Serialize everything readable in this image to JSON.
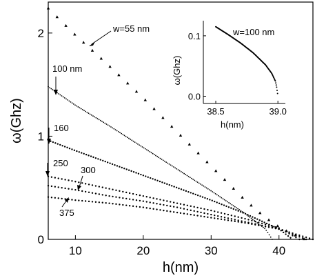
{
  "chart_data": [
    {
      "type": "scatter",
      "title": "",
      "xlabel": "h(nm)",
      "ylabel": "ω(Ghz)",
      "xlim": [
        6,
        45
      ],
      "ylim": [
        0,
        2.3
      ],
      "xticks": [
        10,
        20,
        30,
        40
      ],
      "yticks": [
        0,
        1,
        2
      ],
      "xtick_labels": [
        "10",
        "20",
        "30",
        "40"
      ],
      "ytick_labels": [
        "0",
        "1",
        "2"
      ],
      "grid": false,
      "legend": "none",
      "series": [
        {
          "name": "w=55 nm",
          "marker": "triangle",
          "x": [
            6,
            10,
            15,
            20,
            25,
            30,
            35,
            38,
            40,
            42,
            43.8
          ],
          "y": [
            2.24,
            1.98,
            1.68,
            1.37,
            1.04,
            0.71,
            0.38,
            0.21,
            0.12,
            0.05,
            0.0
          ]
        },
        {
          "name": "100 nm",
          "marker": "dot",
          "x": [
            6,
            10,
            15,
            20,
            25,
            30,
            35,
            38,
            39
          ],
          "y": [
            1.48,
            1.3,
            1.1,
            0.89,
            0.68,
            0.47,
            0.25,
            0.1,
            0.0
          ]
        },
        {
          "name": "160",
          "marker": "dot",
          "x": [
            6,
            10,
            15,
            20,
            25,
            30,
            35,
            40,
            42
          ],
          "y": [
            0.96,
            0.86,
            0.74,
            0.62,
            0.5,
            0.38,
            0.25,
            0.1,
            0.0
          ]
        },
        {
          "name": "250",
          "marker": "dot",
          "x": [
            6,
            10,
            15,
            20,
            25,
            30,
            35,
            40,
            43
          ],
          "y": [
            0.61,
            0.56,
            0.49,
            0.42,
            0.35,
            0.28,
            0.2,
            0.11,
            0.0
          ]
        },
        {
          "name": "300",
          "marker": "dot",
          "x": [
            6,
            10,
            15,
            20,
            25,
            30,
            35,
            40,
            44
          ],
          "y": [
            0.52,
            0.48,
            0.42,
            0.37,
            0.31,
            0.24,
            0.17,
            0.1,
            0.0
          ]
        },
        {
          "name": "375",
          "marker": "dot",
          "x": [
            6,
            10,
            15,
            20,
            25,
            30,
            35,
            40,
            45
          ],
          "y": [
            0.41,
            0.38,
            0.35,
            0.31,
            0.26,
            0.21,
            0.16,
            0.1,
            0.0
          ]
        }
      ],
      "annotations": [
        "w=55 nm",
        "100 nm",
        "160",
        "250",
        "300",
        "375"
      ]
    },
    {
      "type": "scatter",
      "title": "w=100 nm",
      "xlabel": "h(nm)",
      "ylabel": "ω(Ghz)",
      "xlim": [
        38.4,
        39.06
      ],
      "ylim": [
        -0.012,
        0.125
      ],
      "xticks": [
        38.5,
        39.0
      ],
      "yticks": [
        0.0,
        0.1
      ],
      "xtick_labels": [
        "38.5",
        "39.0"
      ],
      "ytick_labels": [
        "0.0",
        "0.1"
      ],
      "grid": false,
      "series": [
        {
          "name": "w=100 nm",
          "marker": "dot",
          "x": [
            38.5,
            38.6,
            38.7,
            38.8,
            38.9,
            38.95,
            38.98,
            38.99,
            39.0
          ],
          "y": [
            0.115,
            0.102,
            0.088,
            0.072,
            0.052,
            0.038,
            0.025,
            0.015,
            0.0
          ]
        }
      ]
    }
  ]
}
